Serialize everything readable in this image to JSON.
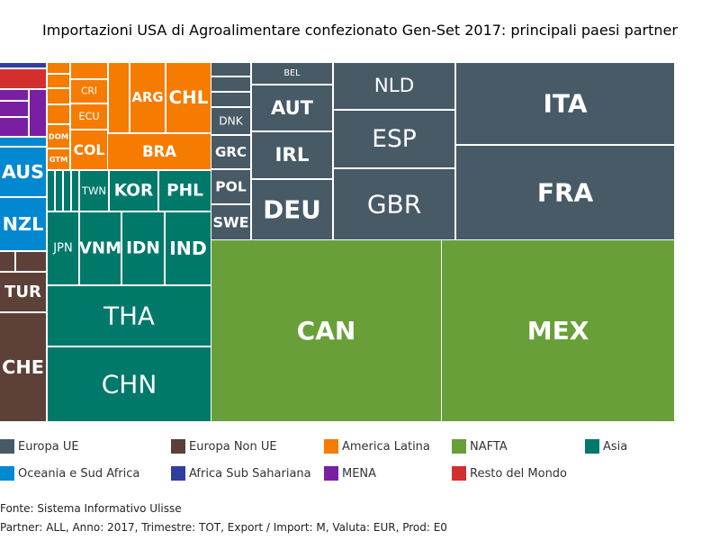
{
  "title": "Importazioni USA di Agroalimentare confezionato Gen-Set 2017: principali paesi partner",
  "footer": {
    "line1": "Fonte: Sistema Informativo Ulisse",
    "line2": "Partner: ALL, Anno: 2017, Trimestre: TOT, Export / Import: M, Valuta: EUR, Prod: E0"
  },
  "colors": {
    "Europa UE": "#475a66",
    "Europa Non UE": "#5d4037",
    "America Latina": "#f57c00",
    "NAFTA": "#689f38",
    "Asia": "#00796b",
    "Oceania e Sud Africa": "#0288d1",
    "Africa Sub Sahariana": "#303f9f",
    "MENA": "#7b1fa2",
    "Resto del Mondo": "#d32f2f"
  },
  "legend": [
    "Europa UE",
    "Europa Non UE",
    "America Latina",
    "NAFTA",
    "Asia",
    "Oceania e Sud Africa",
    "Africa Sub Sahariana",
    "MENA",
    "Resto del Mondo"
  ],
  "chart_data": {
    "type": "treemap",
    "title": "Importazioni USA di Agroalimentare confezionato Gen-Set 2017: principali paesi partner",
    "unit": "relative area",
    "groups": [
      {
        "name": "NAFTA",
        "items": [
          {
            "label": "CAN",
            "value": 5050
          },
          {
            "label": "MEX",
            "value": 5100
          }
        ]
      },
      {
        "name": "Europa UE",
        "items": [
          {
            "label": "ITA",
            "value": 2200
          },
          {
            "label": "FRA",
            "value": 2700
          },
          {
            "label": "NLD",
            "value": 670
          },
          {
            "label": "ESP",
            "value": 850
          },
          {
            "label": "GBR",
            "value": 1030
          },
          {
            "label": "BEL",
            "value": 190
          },
          {
            "label": "AUT",
            "value": 440
          },
          {
            "label": "IRL",
            "value": 480
          },
          {
            "label": "DEU",
            "value": 600
          },
          {
            "label": "DNK",
            "value": 120
          },
          {
            "label": "GRC",
            "value": 110
          },
          {
            "label": "POL",
            "value": 110
          },
          {
            "label": "SWE",
            "value": 110
          },
          {
            "label": "",
            "value": 45
          },
          {
            "label": "",
            "value": 45
          },
          {
            "label": "",
            "value": 45
          }
        ]
      },
      {
        "name": "Asia",
        "items": [
          {
            "label": "CHN",
            "value": 1480
          },
          {
            "label": "THA",
            "value": 1230
          },
          {
            "label": "JPN",
            "value": 280
          },
          {
            "label": "VNM",
            "value": 360
          },
          {
            "label": "IDN",
            "value": 360
          },
          {
            "label": "IND",
            "value": 360
          },
          {
            "label": "TWN",
            "value": 120
          },
          {
            "label": "KOR",
            "value": 230
          },
          {
            "label": "PHL",
            "value": 230
          },
          {
            "label": "",
            "value": 30
          },
          {
            "label": "",
            "value": 30
          },
          {
            "label": "",
            "value": 30
          },
          {
            "label": "",
            "value": 30
          }
        ]
      },
      {
        "name": "America Latina",
        "items": [
          {
            "label": "BRA",
            "value": 460
          },
          {
            "label": "ARG",
            "value": 300
          },
          {
            "label": "CHL",
            "value": 300
          },
          {
            "label": "CRI",
            "value": 80
          },
          {
            "label": "ECU",
            "value": 80
          },
          {
            "label": "COL",
            "value": 120
          },
          {
            "label": "DOM",
            "value": 60
          },
          {
            "label": "GTM",
            "value": 55
          },
          {
            "label": "",
            "value": 40
          },
          {
            "label": "",
            "value": 40
          },
          {
            "label": "",
            "value": 40
          },
          {
            "label": "",
            "value": 40
          }
        ]
      },
      {
        "name": "Europa Non UE",
        "items": [
          {
            "label": "CHE",
            "value": 900
          },
          {
            "label": "TUR",
            "value": 300
          },
          {
            "label": "",
            "value": 45
          },
          {
            "label": "",
            "value": 45
          }
        ]
      },
      {
        "name": "Oceania e Sud Africa",
        "items": [
          {
            "label": "AUS",
            "value": 280
          },
          {
            "label": "NZL",
            "value": 290
          },
          {
            "label": "",
            "value": 30
          }
        ]
      },
      {
        "name": "MENA",
        "items": [
          {
            "label": "",
            "value": 70
          },
          {
            "label": "",
            "value": 30
          },
          {
            "label": "",
            "value": 30
          },
          {
            "label": "",
            "value": 30
          }
        ]
      },
      {
        "name": "Resto del Mondo",
        "items": [
          {
            "label": "",
            "value": 70
          }
        ]
      },
      {
        "name": "Africa Sub Sahariana",
        "items": [
          {
            "label": "",
            "value": 10
          }
        ]
      }
    ]
  }
}
